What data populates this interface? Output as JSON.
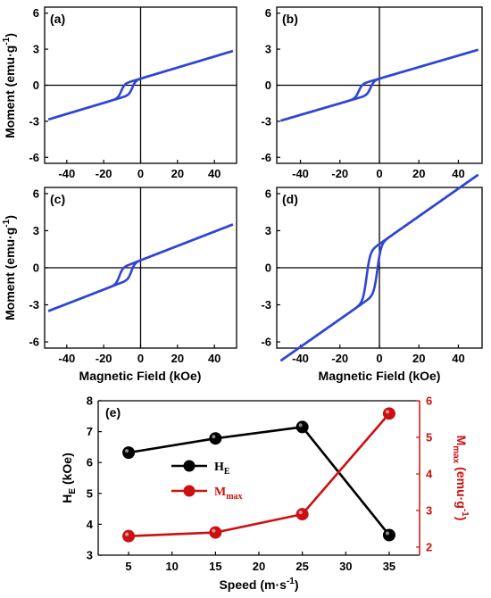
{
  "colors": {
    "loop": "#2f45d6",
    "he": "#000000",
    "mmax": "#cc1010"
  },
  "axis_labels": {
    "moment": "Moment (emu·g",
    "moment_sup": "-1",
    "moment_end": ")",
    "field": "Magnetic Field (kOe)"
  },
  "chart_data": [
    {
      "type": "line",
      "panel": "(a)",
      "xlim": [
        -52,
        52
      ],
      "ylim": [
        -6.5,
        6.5
      ],
      "xticks": [
        -40,
        -20,
        0,
        20,
        40
      ],
      "yticks": [
        -6,
        -3,
        0,
        3,
        6
      ],
      "loop": {
        "m_sat": 2.3,
        "h_c_left": -10.5,
        "h_c_right": -4.5,
        "jump": 1.0
      }
    },
    {
      "type": "line",
      "panel": "(b)",
      "xlim": [
        -52,
        52
      ],
      "ylim": [
        -6.5,
        6.5
      ],
      "xticks": [
        -40,
        -20,
        0,
        20,
        40
      ],
      "yticks": [
        -6,
        -3,
        0,
        3,
        6
      ],
      "loop": {
        "m_sat": 2.4,
        "h_c_left": -10.5,
        "h_c_right": -4.5,
        "jump": 1.0
      }
    },
    {
      "type": "line",
      "panel": "(c)",
      "xlim": [
        -52,
        52
      ],
      "ylim": [
        -6.5,
        6.5
      ],
      "xticks": [
        -40,
        -20,
        0,
        20,
        40
      ],
      "yticks": [
        -6,
        -3,
        0,
        3,
        6
      ],
      "loop": {
        "m_sat": 2.9,
        "h_c_left": -11.5,
        "h_c_right": -5.0,
        "jump": 1.1
      }
    },
    {
      "type": "line",
      "panel": "(d)",
      "xlim": [
        -52,
        52
      ],
      "ylim": [
        -6.5,
        6.5
      ],
      "xticks": [
        -40,
        -20,
        0,
        20,
        40
      ],
      "yticks": [
        -6,
        -3,
        0,
        3,
        6
      ],
      "loop": {
        "m_sat": 5.6,
        "h_c_left": -6.5,
        "h_c_right": -1.0,
        "jump": 3.5
      }
    },
    {
      "type": "line",
      "panel": "(e)",
      "x": [
        5,
        15,
        25,
        35
      ],
      "xlabel": "Speed (m·s",
      "xlabel_sup": "-1",
      "xlabel_end": ")",
      "xticks": [
        5,
        10,
        15,
        20,
        25,
        30,
        35
      ],
      "xlim": [
        1.5,
        38.5
      ],
      "ylabel_left": "H",
      "ylabel_left_sub": "E",
      "ylabel_left_end": " (kOe)",
      "ylim_left": [
        3,
        8
      ],
      "yticks_left": [
        3,
        4,
        5,
        6,
        7,
        8
      ],
      "ylabel_right": "M",
      "ylabel_right_sub": "max",
      "ylabel_right_end": " (emu·g",
      "ylabel_right_sup": "-1",
      "ylabel_right_end2": ")",
      "ylim_right": [
        1.78,
        6.0
      ],
      "yticks_right": [
        2,
        3,
        4,
        5,
        6
      ],
      "legend_position": "center-left",
      "series": [
        {
          "name": "H",
          "name_sub": "E",
          "axis": "left",
          "color": "#000000",
          "values": [
            6.32,
            6.78,
            7.15,
            3.65
          ]
        },
        {
          "name": "M",
          "name_sub": "max",
          "axis": "right",
          "color": "#cc1010",
          "values": [
            2.3,
            2.4,
            2.9,
            5.65
          ]
        }
      ]
    }
  ]
}
